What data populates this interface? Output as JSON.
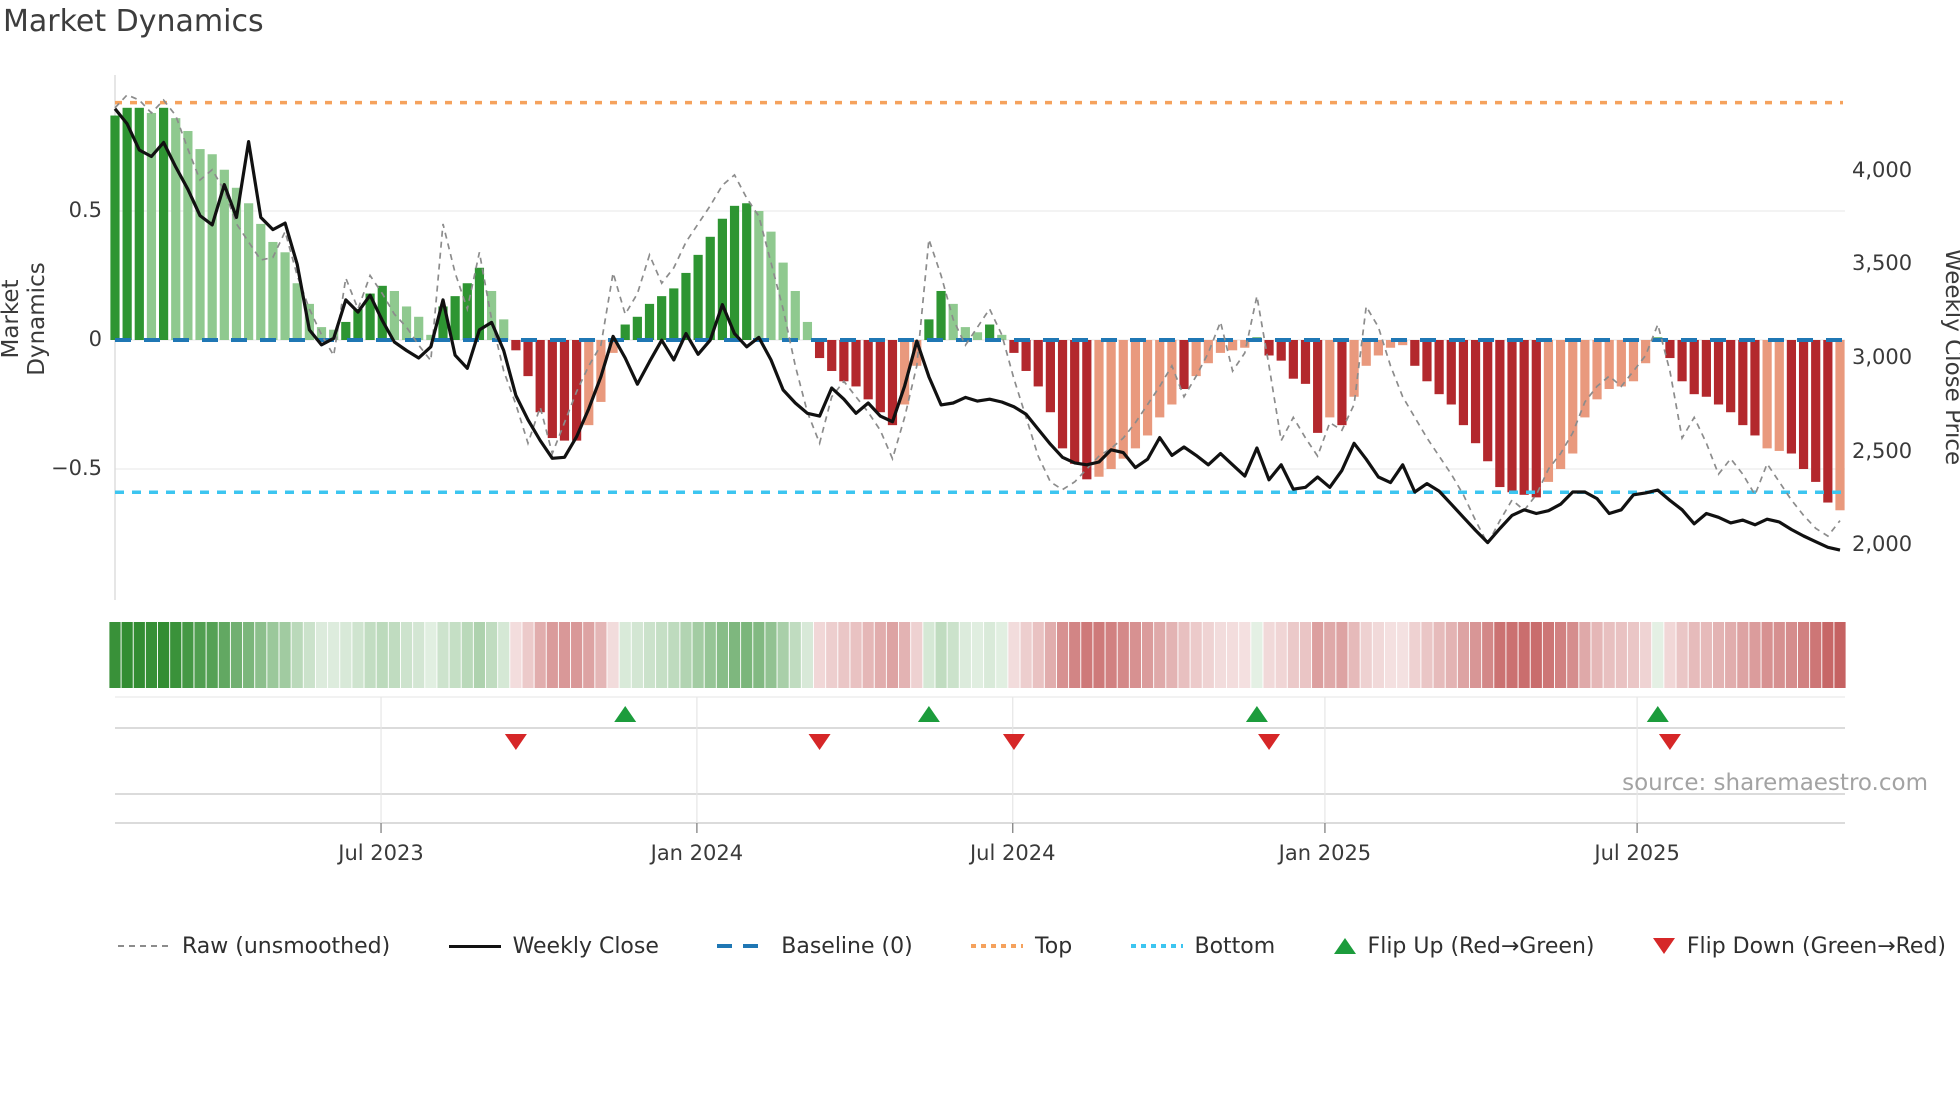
{
  "title": "Market Dynamics",
  "source": "source: sharemaestro.com",
  "left_axis": {
    "label": "Market Dynamics",
    "ticks": [
      {
        "value": 0.5,
        "label": "0.5"
      },
      {
        "value": 0,
        "label": "0"
      },
      {
        "value": -0.5,
        "label": "−0.5"
      }
    ]
  },
  "right_axis": {
    "label": "Weekly Close Price",
    "ticks": [
      {
        "value": 4000,
        "label": "4,000"
      },
      {
        "value": 3500,
        "label": "3,500"
      },
      {
        "value": 3000,
        "label": "3,000"
      },
      {
        "value": 2500,
        "label": "2,500"
      },
      {
        "value": 2000,
        "label": "2,000"
      }
    ]
  },
  "x_axis": {
    "ticks": [
      {
        "pos": 21.9,
        "label": "Jul 2023"
      },
      {
        "pos": 47.9,
        "label": "Jan 2024"
      },
      {
        "pos": 73.9,
        "label": "Jul 2024"
      },
      {
        "pos": 99.6,
        "label": "Jan 2025"
      },
      {
        "pos": 125.3,
        "label": "Jul 2025"
      }
    ]
  },
  "legend": [
    {
      "key": "raw",
      "label": "Raw (unsmoothed)"
    },
    {
      "key": "close",
      "label": "Weekly Close"
    },
    {
      "key": "baseline",
      "label": "Baseline (0)"
    },
    {
      "key": "top",
      "label": "Top"
    },
    {
      "key": "bottom",
      "label": "Bottom"
    },
    {
      "key": "flipup",
      "label": "Flip Up (Red→Green)"
    },
    {
      "key": "flipdown",
      "label": "Flip Down (Green→Red)"
    }
  ],
  "colors": {
    "bar_green_dark": "#2e9532",
    "bar_green_light": "#8fc98f",
    "bar_red_dark": "#b3282d",
    "bar_red_light": "#e9997d",
    "baseline": "#1f77b4",
    "top_line": "#f5a25d",
    "bottom_line": "#3cc5f0",
    "raw_line": "#8c8c8c",
    "price_line": "#111111",
    "flip_up": "#1c9c3c",
    "flip_down": "#d62728",
    "heat_green": "46,139,46",
    "heat_red": "178,45,45"
  },
  "chart_data": {
    "type": "bar+line dual-axis weekly oscillator with heatmap strip and flip markers",
    "weeks": 143,
    "left_ylim": [
      -1.0,
      1.03
    ],
    "right_ylim": [
      1700,
      4510
    ],
    "baseline": 0,
    "top_level": 0.92,
    "bottom_level": -0.59,
    "oscillator": {
      "values": [
        0.87,
        0.9,
        0.9,
        0.88,
        0.9,
        0.86,
        0.81,
        0.74,
        0.72,
        0.66,
        0.59,
        0.53,
        0.45,
        0.38,
        0.34,
        0.22,
        0.14,
        0.05,
        0.04,
        0.07,
        0.12,
        0.18,
        0.21,
        0.19,
        0.13,
        0.09,
        0.02,
        0.13,
        0.17,
        0.22,
        0.28,
        0.19,
        0.08,
        -0.04,
        -0.14,
        -0.28,
        -0.38,
        -0.39,
        -0.39,
        -0.33,
        -0.24,
        -0.05,
        0.06,
        0.09,
        0.14,
        0.17,
        0.2,
        0.26,
        0.33,
        0.4,
        0.47,
        0.52,
        0.53,
        0.5,
        0.42,
        0.3,
        0.19,
        0.07,
        -0.07,
        -0.12,
        -0.16,
        -0.18,
        -0.23,
        -0.28,
        -0.33,
        -0.25,
        -0.1,
        0.08,
        0.19,
        0.14,
        0.05,
        0.03,
        0.06,
        0.02,
        -0.05,
        -0.12,
        -0.18,
        -0.28,
        -0.42,
        -0.48,
        -0.54,
        -0.53,
        -0.5,
        -0.46,
        -0.42,
        -0.37,
        -0.3,
        -0.25,
        -0.19,
        -0.14,
        -0.09,
        -0.05,
        -0.04,
        -0.03,
        0.01,
        -0.06,
        -0.08,
        -0.15,
        -0.17,
        -0.36,
        -0.3,
        -0.33,
        -0.22,
        -0.1,
        -0.06,
        -0.03,
        -0.02,
        -0.1,
        -0.16,
        -0.21,
        -0.25,
        -0.33,
        -0.4,
        -0.47,
        -0.57,
        -0.59,
        -0.6,
        -0.61,
        -0.55,
        -0.5,
        -0.44,
        -0.3,
        -0.23,
        -0.19,
        -0.18,
        -0.16,
        -0.09,
        0.01,
        -0.07,
        -0.16,
        -0.21,
        -0.22,
        -0.25,
        -0.28,
        -0.33,
        -0.37,
        -0.42,
        -0.43,
        -0.44,
        -0.5,
        -0.55,
        -0.63,
        -0.66
      ],
      "shades": [
        "d",
        "d",
        "d",
        "l",
        "d",
        "l",
        "l",
        "l",
        "l",
        "l",
        "l",
        "l",
        "l",
        "l",
        "l",
        "l",
        "l",
        "l",
        "l",
        "d",
        "d",
        "d",
        "d",
        "l",
        "l",
        "l",
        "l",
        "d",
        "d",
        "d",
        "d",
        "l",
        "l",
        "d",
        "d",
        "d",
        "d",
        "d",
        "d",
        "l",
        "l",
        "l",
        "d",
        "d",
        "d",
        "d",
        "d",
        "d",
        "d",
        "d",
        "d",
        "d",
        "d",
        "l",
        "l",
        "l",
        "l",
        "l",
        "d",
        "d",
        "d",
        "d",
        "d",
        "d",
        "d",
        "l",
        "l",
        "d",
        "d",
        "l",
        "l",
        "l",
        "d",
        "l",
        "d",
        "d",
        "d",
        "d",
        "d",
        "d",
        "d",
        "l",
        "l",
        "l",
        "l",
        "l",
        "l",
        "l",
        "d",
        "l",
        "l",
        "l",
        "l",
        "l",
        "d",
        "d",
        "d",
        "d",
        "d",
        "d",
        "l",
        "d",
        "l",
        "l",
        "l",
        "l",
        "l",
        "d",
        "d",
        "d",
        "d",
        "d",
        "d",
        "d",
        "d",
        "d",
        "d",
        "d",
        "l",
        "l",
        "l",
        "l",
        "l",
        "l",
        "l",
        "l",
        "l",
        "d",
        "d",
        "d",
        "d",
        "d",
        "d",
        "d",
        "d",
        "d",
        "l",
        "l",
        "d",
        "d",
        "d",
        "d",
        "l"
      ]
    },
    "raw": [
      0.9,
      0.95,
      0.93,
      0.88,
      0.93,
      0.87,
      0.74,
      0.62,
      0.66,
      0.58,
      0.45,
      0.38,
      0.31,
      0.32,
      0.42,
      0.25,
      0.12,
      0.02,
      -0.06,
      0.24,
      0.12,
      0.25,
      0.18,
      0.1,
      0.05,
      -0.02,
      -0.08,
      0.45,
      0.26,
      0.12,
      0.34,
      0.08,
      -0.12,
      -0.25,
      -0.4,
      -0.26,
      -0.44,
      -0.32,
      -0.2,
      -0.1,
      -0.02,
      0.26,
      0.1,
      0.18,
      0.33,
      0.22,
      0.28,
      0.38,
      0.45,
      0.52,
      0.6,
      0.64,
      0.55,
      0.48,
      0.3,
      0.12,
      -0.1,
      -0.28,
      -0.4,
      -0.22,
      -0.16,
      -0.22,
      -0.28,
      -0.35,
      -0.46,
      -0.3,
      -0.1,
      0.39,
      0.25,
      0.08,
      -0.02,
      0.05,
      0.12,
      0.02,
      -0.15,
      -0.3,
      -0.45,
      -0.55,
      -0.58,
      -0.55,
      -0.5,
      -0.45,
      -0.42,
      -0.38,
      -0.32,
      -0.25,
      -0.18,
      -0.1,
      -0.22,
      -0.14,
      -0.05,
      0.07,
      -0.12,
      -0.05,
      0.17,
      -0.1,
      -0.39,
      -0.3,
      -0.38,
      -0.45,
      -0.32,
      -0.35,
      -0.25,
      0.13,
      0.05,
      -0.1,
      -0.22,
      -0.3,
      -0.38,
      -0.45,
      -0.52,
      -0.6,
      -0.7,
      -0.79,
      -0.7,
      -0.62,
      -0.66,
      -0.6,
      -0.5,
      -0.44,
      -0.36,
      -0.24,
      -0.18,
      -0.14,
      -0.18,
      -0.12,
      -0.06,
      0.06,
      -0.12,
      -0.38,
      -0.3,
      -0.4,
      -0.52,
      -0.46,
      -0.52,
      -0.6,
      -0.48,
      -0.55,
      -0.62,
      -0.68,
      -0.73,
      -0.76,
      -0.7
    ],
    "price": [
      4330,
      4250,
      4110,
      4075,
      4150,
      4020,
      3900,
      3760,
      3710,
      3925,
      3750,
      4155,
      3750,
      3685,
      3720,
      3500,
      3150,
      3070,
      3105,
      3310,
      3245,
      3335,
      3200,
      3085,
      3040,
      3000,
      3060,
      3310,
      3015,
      2945,
      3150,
      3190,
      3040,
      2800,
      2670,
      2560,
      2465,
      2470,
      2580,
      2730,
      2900,
      3115,
      3000,
      2860,
      2980,
      3095,
      2990,
      3130,
      3020,
      3095,
      3285,
      3130,
      3060,
      3110,
      2990,
      2830,
      2760,
      2705,
      2690,
      2840,
      2780,
      2705,
      2760,
      2690,
      2660,
      2850,
      3090,
      2900,
      2750,
      2760,
      2790,
      2770,
      2780,
      2765,
      2740,
      2700,
      2620,
      2540,
      2470,
      2440,
      2430,
      2445,
      2510,
      2495,
      2415,
      2460,
      2575,
      2480,
      2525,
      2480,
      2430,
      2490,
      2430,
      2370,
      2520,
      2350,
      2430,
      2300,
      2310,
      2365,
      2310,
      2400,
      2545,
      2460,
      2365,
      2335,
      2430,
      2285,
      2330,
      2290,
      2220,
      2150,
      2080,
      2015,
      2090,
      2160,
      2190,
      2170,
      2185,
      2220,
      2285,
      2285,
      2250,
      2170,
      2190,
      2270,
      2280,
      2295,
      2240,
      2190,
      2115,
      2170,
      2150,
      2120,
      2135,
      2110,
      2140,
      2125,
      2085,
      2050,
      2020,
      1990,
      1975
    ],
    "flips": [
      {
        "index": 33,
        "direction": "down"
      },
      {
        "index": 42,
        "direction": "up"
      },
      {
        "index": 58,
        "direction": "down"
      },
      {
        "index": 67,
        "direction": "up"
      },
      {
        "index": 74,
        "direction": "down"
      },
      {
        "index": 94,
        "direction": "up"
      },
      {
        "index": 95,
        "direction": "down"
      },
      {
        "index": 127,
        "direction": "up"
      },
      {
        "index": 128,
        "direction": "down"
      }
    ]
  }
}
